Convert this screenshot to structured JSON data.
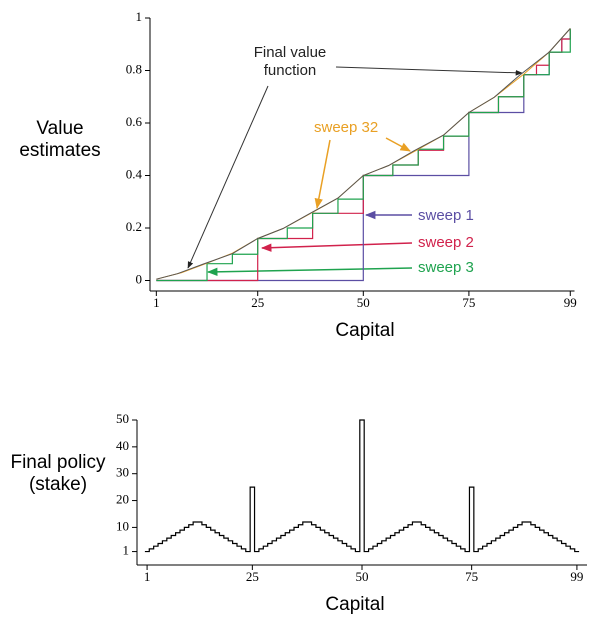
{
  "chart_data": [
    {
      "type": "line",
      "xlim": [
        -0.5,
        100
      ],
      "ylim": [
        -0.04,
        1
      ],
      "xticks": [
        1,
        25,
        50,
        75,
        99
      ],
      "yticks": [
        0,
        0.2,
        0.4,
        0.6,
        0.8,
        1
      ],
      "x_label": "Capital",
      "y_label": "Value estimates",
      "series": [
        {
          "name": "sweep 1",
          "color": "#5b4ea3",
          "step": true,
          "x": [
            1,
            50,
            75,
            88,
            94,
            97,
            99
          ],
          "values": [
            0,
            0.4,
            0.64,
            0.784,
            0.87,
            0.92,
            0.95
          ]
        },
        {
          "name": "sweep 2",
          "color": "#d1224c",
          "step": true,
          "x": [
            1,
            25,
            38,
            50,
            57,
            63,
            69,
            75,
            82,
            88,
            91,
            94,
            97,
            99
          ],
          "values": [
            0,
            0.16,
            0.256,
            0.4,
            0.44,
            0.496,
            0.55,
            0.64,
            0.7,
            0.784,
            0.82,
            0.87,
            0.92,
            0.96
          ]
        },
        {
          "name": "sweep 3",
          "color": "#1fa34f",
          "step": true,
          "x": [
            1,
            13,
            19,
            25,
            32,
            38,
            44,
            50,
            57,
            63,
            69,
            75,
            82,
            88,
            94,
            99
          ],
          "values": [
            0,
            0.064,
            0.1,
            0.16,
            0.2,
            0.256,
            0.31,
            0.4,
            0.44,
            0.5,
            0.55,
            0.64,
            0.7,
            0.784,
            0.87,
            0.96
          ]
        },
        {
          "name": "sweep 32",
          "color": "#e9a024",
          "step": false,
          "x": [
            1,
            7,
            13,
            19,
            25,
            31,
            38,
            44,
            50,
            56,
            63,
            69,
            75,
            81,
            88,
            94,
            99
          ],
          "values": [
            0.005,
            0.03,
            0.066,
            0.104,
            0.16,
            0.198,
            0.26,
            0.314,
            0.4,
            0.438,
            0.5,
            0.554,
            0.64,
            0.698,
            0.786,
            0.87,
            0.96
          ]
        },
        {
          "name": "Final value function",
          "color": "#555555",
          "step": false,
          "x": [
            1,
            6,
            12,
            19,
            25,
            31,
            37,
            44,
            50,
            56,
            62,
            69,
            75,
            81,
            87,
            94,
            99
          ],
          "values": [
            0.005,
            0.026,
            0.062,
            0.102,
            0.16,
            0.198,
            0.252,
            0.314,
            0.4,
            0.438,
            0.494,
            0.554,
            0.64,
            0.698,
            0.782,
            0.87,
            0.96
          ]
        }
      ]
    },
    {
      "type": "step",
      "xlim": [
        -1.3,
        101.3
      ],
      "ylim": [
        -4,
        50
      ],
      "xticks": [
        1,
        25,
        50,
        75,
        99
      ],
      "yticks": [
        1,
        10,
        20,
        30,
        40,
        50
      ],
      "x_label": "Capital",
      "y_label": "Final policy (stake)",
      "color": "#000000",
      "x": [
        1,
        2,
        3,
        4,
        5,
        6,
        7,
        8,
        9,
        10,
        11,
        12,
        13,
        14,
        15,
        16,
        17,
        18,
        19,
        20,
        21,
        22,
        23,
        24,
        25,
        26,
        27,
        28,
        29,
        30,
        31,
        32,
        33,
        34,
        35,
        36,
        37,
        38,
        39,
        40,
        41,
        42,
        43,
        44,
        45,
        46,
        47,
        48,
        49,
        50,
        51,
        52,
        53,
        54,
        55,
        56,
        57,
        58,
        59,
        60,
        61,
        62,
        63,
        64,
        65,
        66,
        67,
        68,
        69,
        70,
        71,
        72,
        73,
        74,
        75,
        76,
        77,
        78,
        79,
        80,
        81,
        82,
        83,
        84,
        85,
        86,
        87,
        88,
        89,
        90,
        91,
        92,
        93,
        94,
        95,
        96,
        97,
        98,
        99
      ],
      "values": [
        1,
        2,
        3,
        4,
        5,
        6,
        7,
        8,
        9,
        10,
        11,
        12,
        12,
        11,
        10,
        9,
        8,
        7,
        6,
        5,
        4,
        3,
        2,
        1,
        25,
        1,
        2,
        3,
        4,
        5,
        6,
        7,
        8,
        9,
        10,
        11,
        12,
        12,
        11,
        10,
        9,
        8,
        7,
        6,
        5,
        4,
        3,
        2,
        1,
        50,
        1,
        2,
        3,
        4,
        5,
        6,
        7,
        8,
        9,
        10,
        11,
        12,
        12,
        11,
        10,
        9,
        8,
        7,
        6,
        5,
        4,
        3,
        2,
        1,
        25,
        1,
        2,
        3,
        4,
        5,
        6,
        7,
        8,
        9,
        10,
        11,
        12,
        12,
        11,
        10,
        9,
        8,
        7,
        6,
        5,
        4,
        3,
        2,
        1
      ]
    }
  ]
}
